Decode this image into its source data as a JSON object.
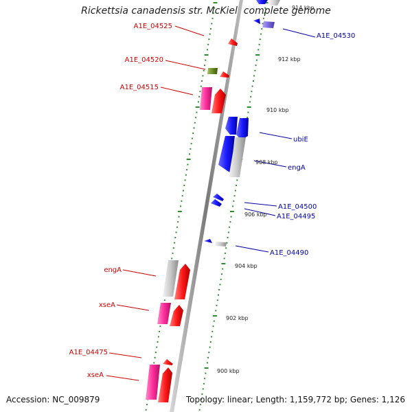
{
  "title": "Rickettsia canadensis str. McKiel, complete genome",
  "footer": {
    "accession": "Accession: NC_009879",
    "summary": "Topology: linear; Length: 1,159,772 bp; Genes: 1,126"
  },
  "colors": {
    "backbone": "#8a8a8a",
    "tick": "#2e8b2e",
    "reverse_label": "#cc0000",
    "forward_label": "#0000aa",
    "red": "#ff1a1a",
    "pink": "#ff2e9a",
    "olive": "#6b8e23",
    "grey": "#c8c8c8",
    "blue": "#1a1aff",
    "violet": "#7a6adf"
  },
  "scale_labels": [
    {
      "text": "914 kbp"
    },
    {
      "text": "912 kbp"
    },
    {
      "text": "910 kbp"
    },
    {
      "text": "908 kbp"
    },
    {
      "text": "906 kbp"
    },
    {
      "text": "904 kbp"
    },
    {
      "text": "902 kbp"
    },
    {
      "text": "900 kbp"
    }
  ],
  "left_labels": [
    {
      "text": "A1E_04525"
    },
    {
      "text": "A1E_04520"
    },
    {
      "text": "A1E_04515"
    },
    {
      "text": "engA"
    },
    {
      "text": "xseA"
    },
    {
      "text": "A1E_04475"
    },
    {
      "text": "xseA"
    }
  ],
  "right_labels": [
    {
      "text": "A1E_04530"
    },
    {
      "text": "ubiE"
    },
    {
      "text": "engA"
    },
    {
      "text": "A1E_04500"
    },
    {
      "text": "A1E_04495"
    },
    {
      "text": "A1E_04490"
    }
  ]
}
